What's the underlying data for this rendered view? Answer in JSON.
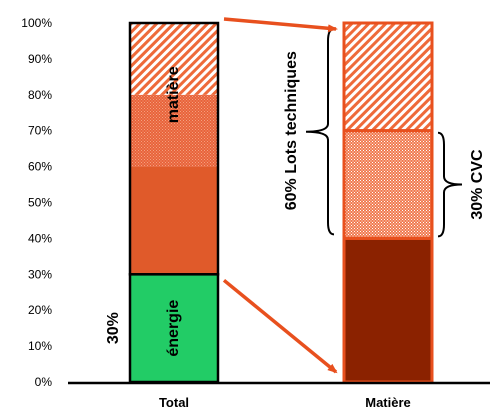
{
  "chart_data": {
    "type": "bar",
    "stacked": true,
    "ylim": [
      0,
      100
    ],
    "ytick_labels": [
      "0%",
      "10%",
      "20%",
      "30%",
      "40%",
      "50%",
      "60%",
      "70%",
      "80%",
      "90%",
      "100%"
    ],
    "categories": [
      "Total",
      "Matière"
    ],
    "bars": [
      {
        "category": "Total",
        "segments": [
          {
            "from": 0,
            "to": 30,
            "label": "énergie",
            "fill": "solid",
            "color": "#22cc66"
          },
          {
            "from": 30,
            "to": 60,
            "fill": "solid",
            "color": "#e05a2a"
          },
          {
            "from": 60,
            "to": 80,
            "fill": "dots",
            "color": "#e8633a"
          },
          {
            "from": 80,
            "to": 100,
            "fill": "hatch",
            "color": "#ee6a3a"
          }
        ],
        "group_labels": [
          {
            "text": "matière",
            "from": 30,
            "to": 100
          },
          {
            "text": "30%",
            "from": 0,
            "to": 30
          }
        ]
      },
      {
        "category": "Matière",
        "segments": [
          {
            "from": 0,
            "to": 40,
            "fill": "solid",
            "color": "#8b2200"
          },
          {
            "from": 40,
            "to": 70,
            "fill": "dots",
            "color": "#f07a50"
          },
          {
            "from": 70,
            "to": 100,
            "fill": "hatch",
            "color": "#ee6a3a"
          }
        ],
        "annotations": [
          {
            "text": "60% Lots techniques",
            "from": 40,
            "to": 100,
            "side": "left"
          },
          {
            "text": "30% CVC",
            "from": 40,
            "to": 70,
            "side": "right"
          }
        ]
      }
    ],
    "arrows": [
      {
        "from_bar": "Total",
        "from_value": 100,
        "to_bar": "Matière",
        "to_value": 100
      },
      {
        "from_bar": "Total",
        "from_value": 30,
        "to_bar": "Matière",
        "to_value": 0
      }
    ],
    "colors": {
      "outline": "#e8501e",
      "arrow": "#e8501e",
      "black": "#000000"
    }
  }
}
